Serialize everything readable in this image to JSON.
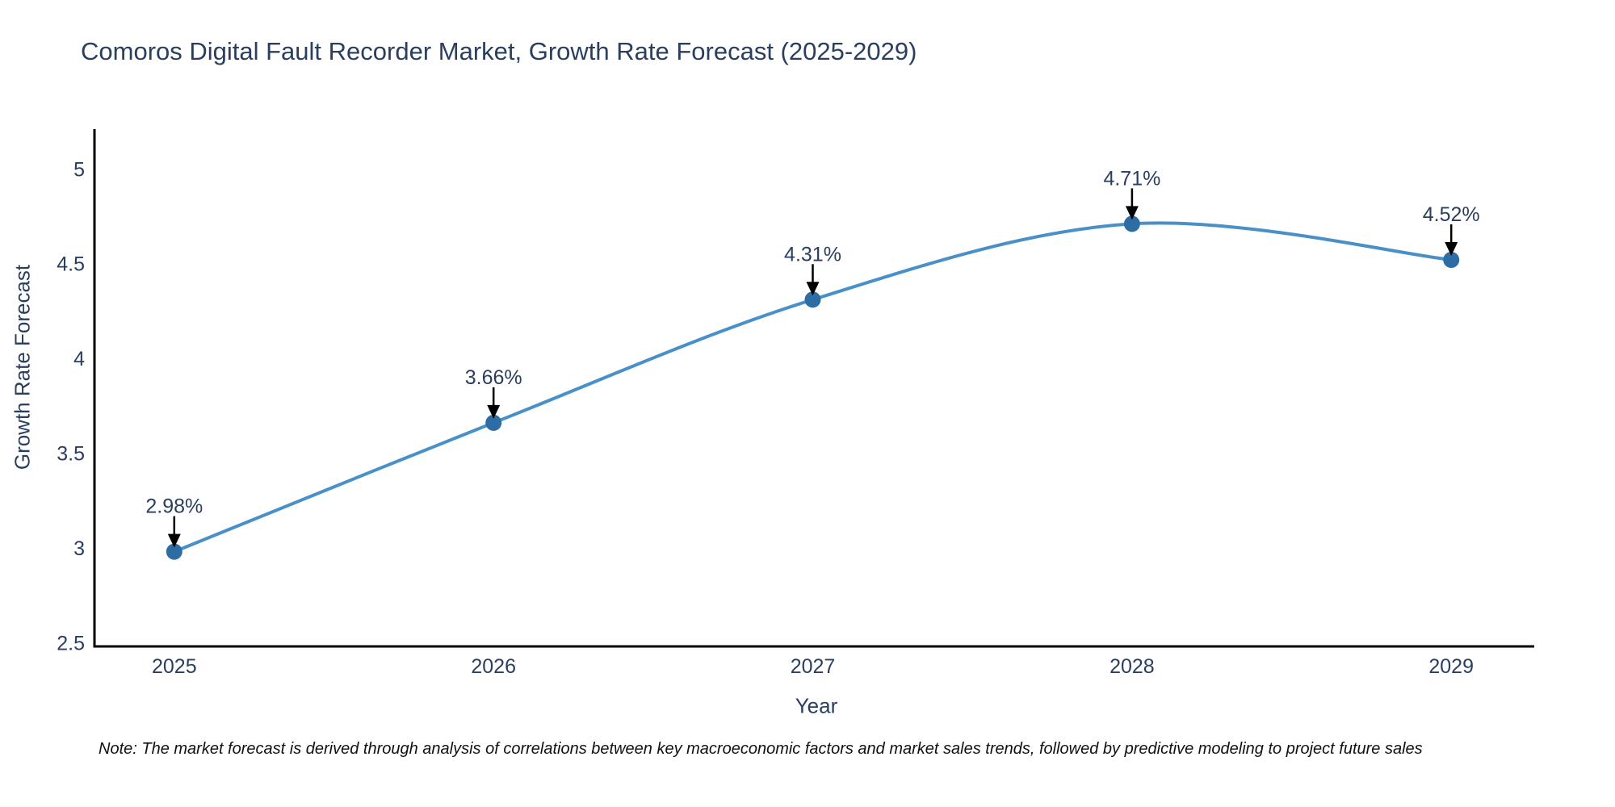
{
  "title": "Comoros Digital Fault Recorder Market, Growth Rate Forecast (2025-2029)",
  "note": "Note: The market forecast is derived through analysis of correlations between key macroeconomic factors and market sales trends, followed by predictive modeling to project future sales",
  "chart_data": {
    "type": "line",
    "title": "Comoros Digital Fault Recorder Market, Growth Rate Forecast (2025-2029)",
    "xlabel": "Year",
    "ylabel": "Growth Rate Forecast",
    "x": [
      2025,
      2026,
      2027,
      2028,
      2029
    ],
    "values": [
      2.98,
      3.66,
      4.31,
      4.71,
      4.52
    ],
    "point_labels": [
      "2.98%",
      "3.66%",
      "4.31%",
      "4.71%",
      "4.52%"
    ],
    "x_ticks": [
      2025,
      2026,
      2027,
      2028,
      2029
    ],
    "y_ticks": [
      2.5,
      3,
      3.5,
      4,
      4.5,
      5
    ],
    "xlim": [
      2024.75,
      2029.26
    ],
    "ylim": [
      2.48,
      5.21
    ],
    "grid": false,
    "legend": "none",
    "line_shape": "spline",
    "colors": {
      "line": "#4a90c8",
      "marker": "#2e6da4",
      "axis": "#000000",
      "tick_text": "#2a3f5f",
      "annotation_text": "#2a3f5f",
      "arrow": "#000000",
      "background": "#ffffff"
    }
  }
}
